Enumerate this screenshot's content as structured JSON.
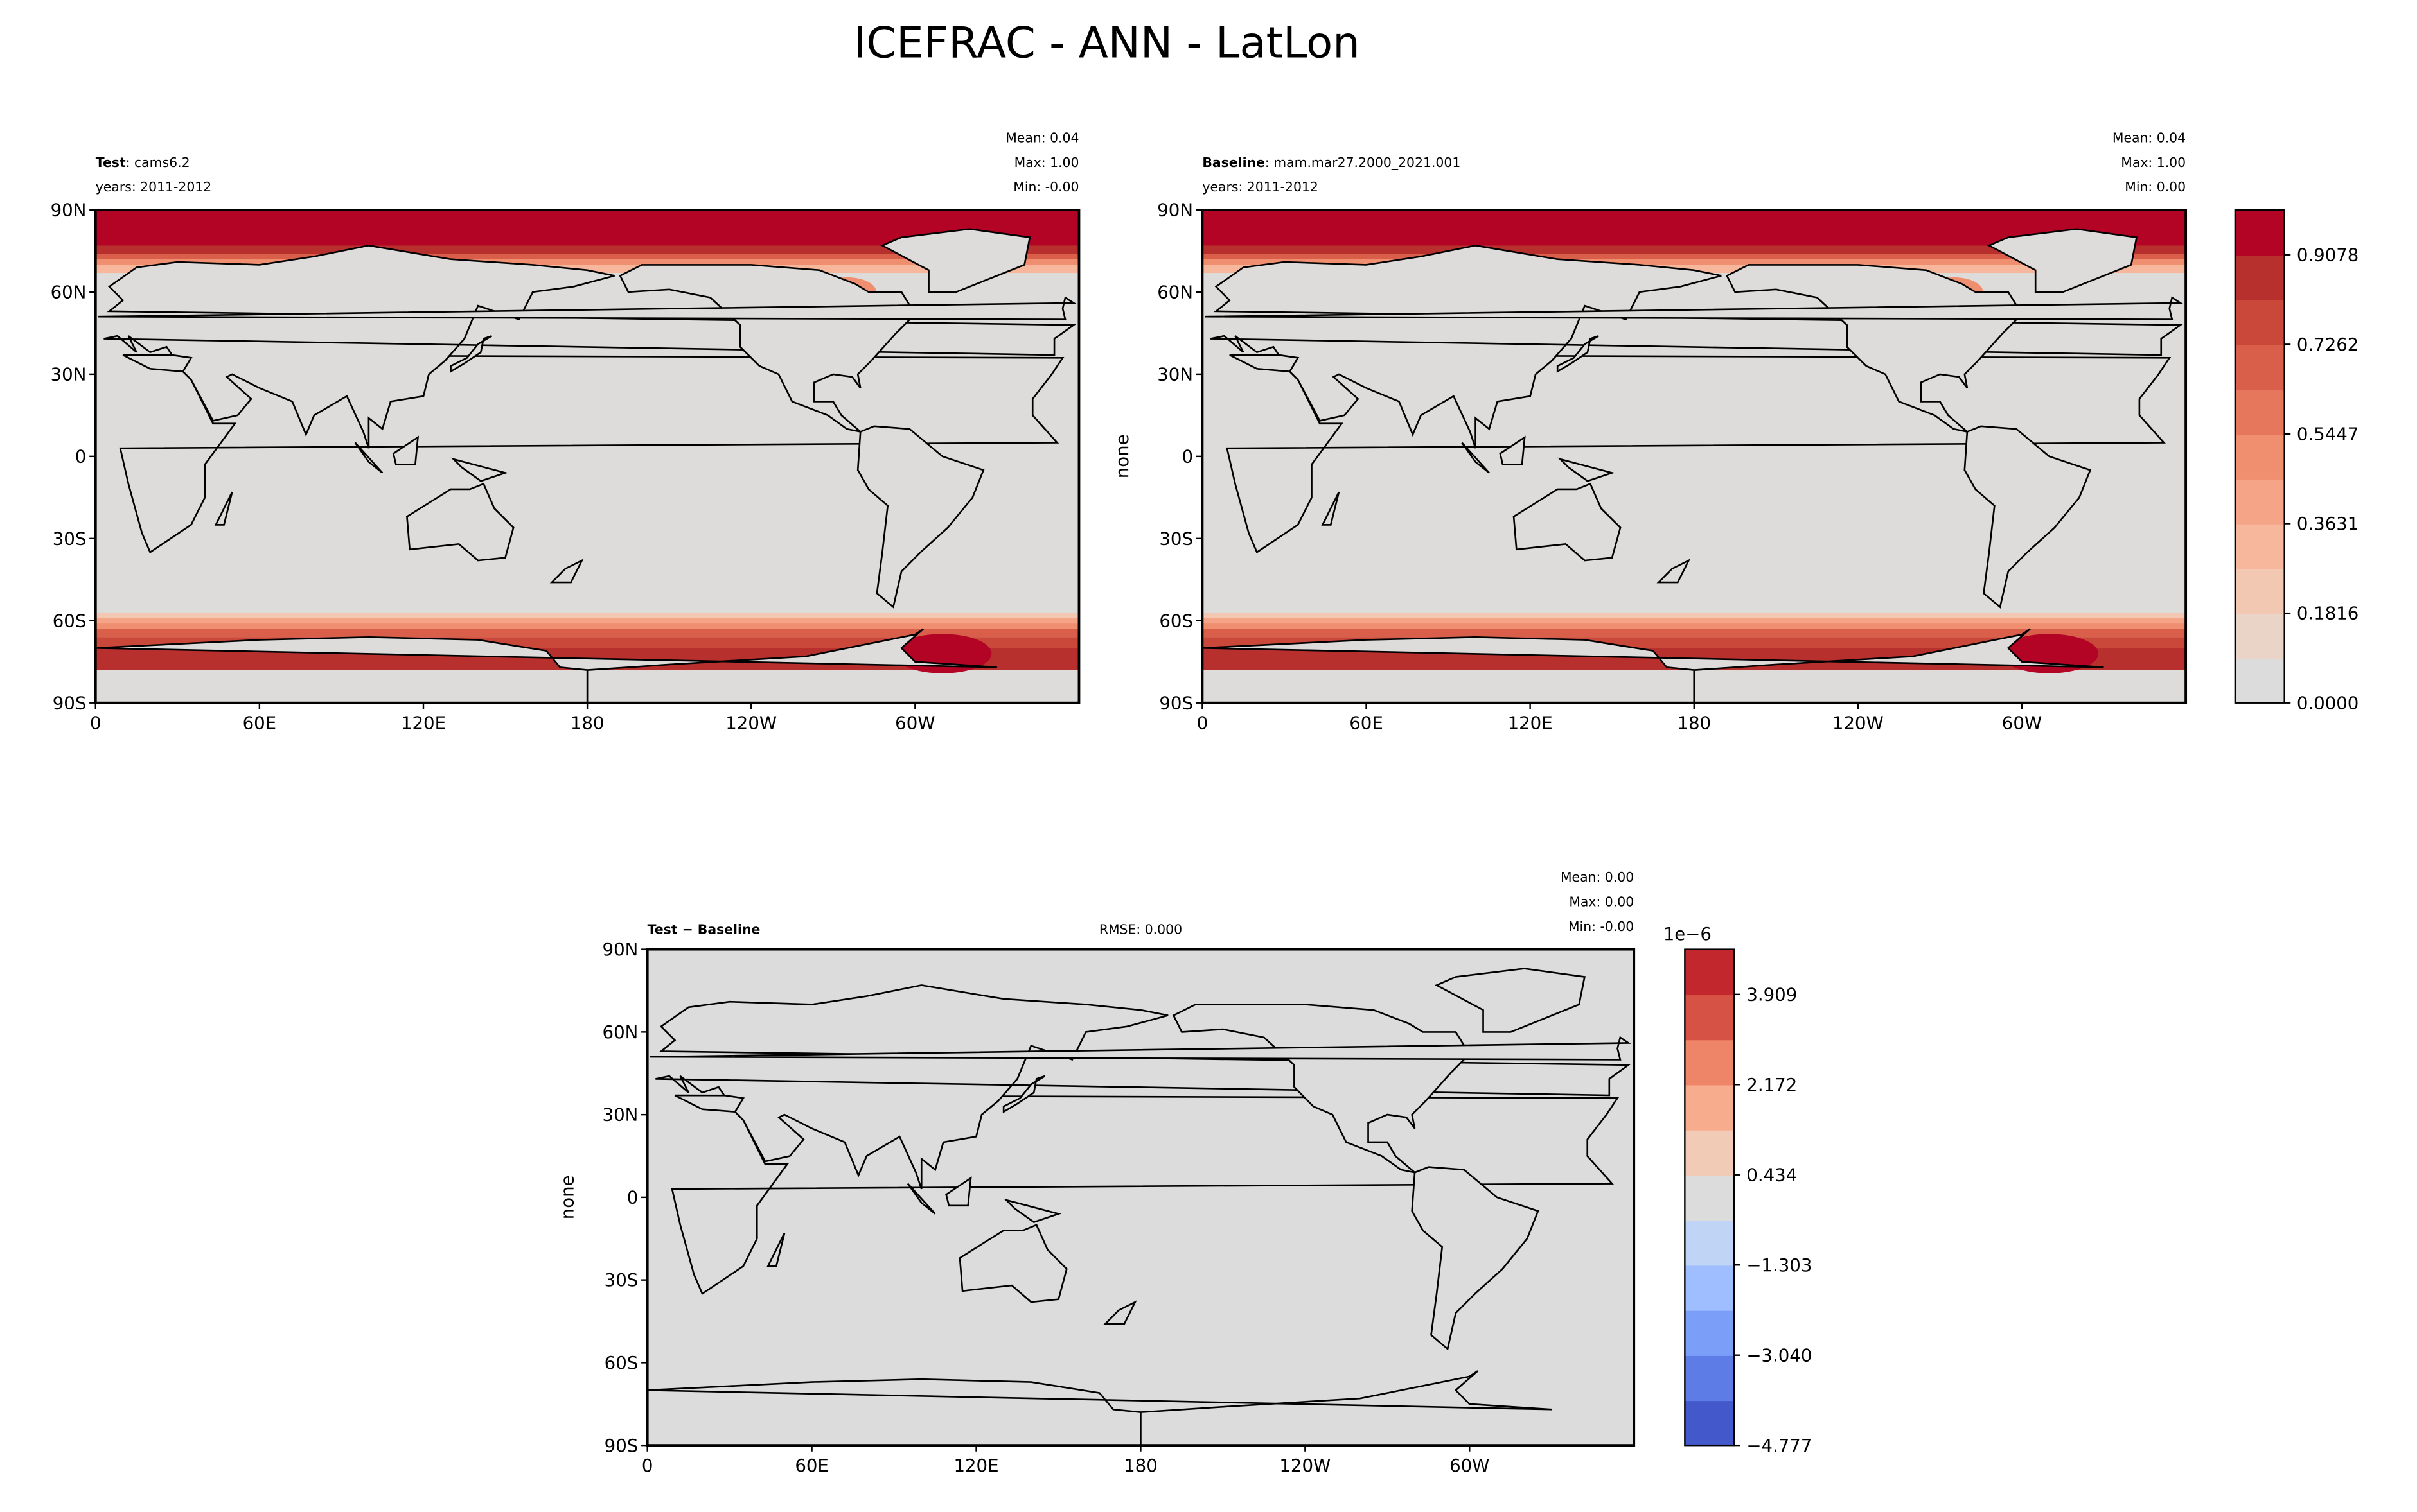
{
  "title": "ICEFRAC - ANN - LatLon",
  "chart_data": [
    {
      "type": "heatmap",
      "subtype": "filled contour map",
      "label_bold": "Test",
      "label_rest": ": cams6.2",
      "years": "years: 2011-2012",
      "stats": [
        "Mean:  0.04",
        "Max:  1.00",
        "Min: -0.00"
      ],
      "xticks": [
        "0",
        "60E",
        "120E",
        "180",
        "120W",
        "60W"
      ],
      "yticks": [
        "90N",
        "60N",
        "30N",
        "0",
        "30S",
        "60S",
        "90S"
      ],
      "ylabel": "",
      "xlim": [
        0,
        360
      ],
      "ylim": [
        -90,
        90
      ]
    },
    {
      "type": "heatmap",
      "subtype": "filled contour map",
      "label_bold": "Baseline",
      "label_rest": ": mam.mar27.2000_2021.001",
      "years": "years: 2011-2012",
      "stats": [
        "Mean:  0.04",
        "Max:  1.00",
        "Min:  0.00"
      ],
      "xticks": [
        "0",
        "60E",
        "120E",
        "180",
        "120W",
        "60W"
      ],
      "yticks": [
        "90N",
        "60N",
        "30N",
        "0",
        "30S",
        "60S",
        "90S"
      ],
      "ylabel": "none",
      "xlim": [
        0,
        360
      ],
      "ylim": [
        -90,
        90
      ],
      "colorbar": {
        "ticks": [
          "0.0000",
          "0.1816",
          "0.3631",
          "0.5447",
          "0.7262",
          "0.9078"
        ],
        "range": [
          0,
          0.9986
        ],
        "colors": [
          "#dddcdc",
          "#ead4c8",
          "#f2c8b3",
          "#f6b79c",
          "#f5a487",
          "#f08f70",
          "#e6775c",
          "#d95f4b",
          "#ca4839",
          "#b8302e",
          "#b40426"
        ]
      }
    },
    {
      "type": "heatmap",
      "subtype": "filled contour map",
      "label_bold": "Test − Baseline",
      "rmse": "RMSE: 0.000",
      "stats": [
        "Mean:  0.00",
        "Max:  0.00",
        "Min: -0.00"
      ],
      "xticks": [
        "0",
        "60E",
        "120E",
        "180",
        "120W",
        "60W"
      ],
      "yticks": [
        "90N",
        "60N",
        "30N",
        "0",
        "30S",
        "60S",
        "90S"
      ],
      "ylabel": "none",
      "xlim": [
        0,
        360
      ],
      "ylim": [
        -90,
        90
      ],
      "colorbar": {
        "offset_label": "1e−6",
        "ticks": [
          "−4.777",
          "−3.040",
          "−1.303",
          "0.434",
          "2.172",
          "3.909"
        ],
        "range": [
          -4.777,
          4.777
        ],
        "colors": [
          "#4358cb",
          "#5d7ce6",
          "#7b9ff9",
          "#9ebeff",
          "#c0d4f5",
          "#dcdcdc",
          "#f2cbb7",
          "#f7ac8e",
          "#ee8468",
          "#d65244",
          "#c1272d"
        ]
      }
    }
  ]
}
